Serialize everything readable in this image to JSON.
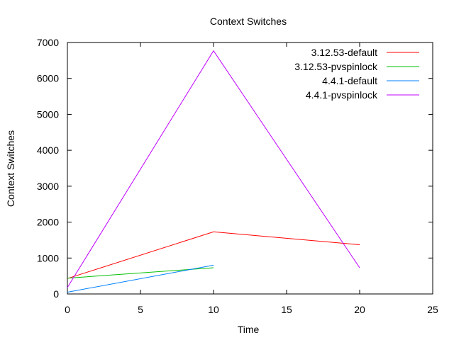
{
  "chart_data": {
    "type": "line",
    "title": "Context Switches",
    "xlabel": "Time",
    "ylabel": "Context Switches",
    "xlim": [
      0,
      25
    ],
    "ylim": [
      0,
      7000
    ],
    "xticks": [
      "0",
      "5",
      "10",
      "15",
      "20",
      "25"
    ],
    "yticks": [
      "0",
      "1000",
      "2000",
      "3000",
      "4000",
      "5000",
      "6000",
      "7000"
    ],
    "grid": false,
    "legend_position": "top-right",
    "series": [
      {
        "name": "3.12.53-default",
        "color": "#ff0000",
        "x": [
          0,
          10,
          20
        ],
        "y": [
          430,
          1730,
          1370
        ]
      },
      {
        "name": "3.12.53-pvspinlock",
        "color": "#00c000",
        "x": [
          0,
          10
        ],
        "y": [
          440,
          730
        ]
      },
      {
        "name": "4.4.1-default",
        "color": "#0080ff",
        "x": [
          0,
          10
        ],
        "y": [
          50,
          800
        ]
      },
      {
        "name": "4.4.1-pvspinlock",
        "color": "#c000ff",
        "x": [
          0,
          10,
          20
        ],
        "y": [
          180,
          6770,
          730
        ]
      }
    ]
  }
}
